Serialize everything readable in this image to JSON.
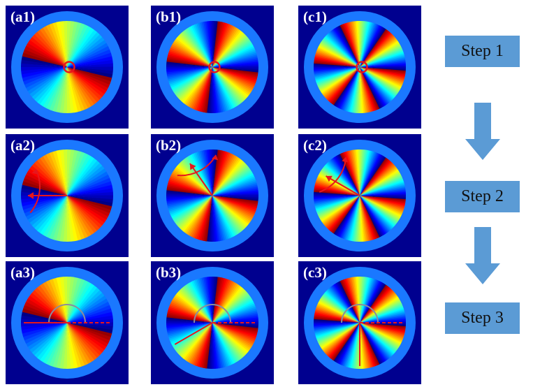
{
  "colors": {
    "panel_bg": "#00008f",
    "ring": "#1a78ff",
    "step_box": "#5b9bd5",
    "marker_red": "#e8161c",
    "guide_gray": "#8c8c9c"
  },
  "panels": [
    {
      "id": "a1",
      "label": "(a1)",
      "order": 2,
      "marker": "circle"
    },
    {
      "id": "b1",
      "label": "(b1)",
      "order": 4,
      "marker": "circle"
    },
    {
      "id": "c1",
      "label": "(c1)",
      "order": 6,
      "marker": "circle"
    },
    {
      "id": "a2",
      "label": "(a2)",
      "order": 2,
      "marker": "rotate",
      "arrow_angle_deg": 180
    },
    {
      "id": "b2",
      "label": "(b2)",
      "order": 4,
      "marker": "rotate",
      "arrow_angle_deg": 125
    },
    {
      "id": "c2",
      "label": "(c2)",
      "order": 6,
      "marker": "rotate",
      "arrow_angle_deg": 150
    },
    {
      "id": "a3",
      "label": "(a3)",
      "order": 2,
      "marker": "angle",
      "lines_deg": [
        180
      ],
      "dashed_deg": 0
    },
    {
      "id": "b3",
      "label": "(b3)",
      "order": 4,
      "marker": "angle",
      "lines_deg": [
        210
      ],
      "dashed_deg": 0
    },
    {
      "id": "c3",
      "label": "(c3)",
      "order": 6,
      "marker": "angle",
      "lines_deg": [
        270
      ],
      "dashed_deg": 0
    }
  ],
  "steps": [
    {
      "label": "Step 1"
    },
    {
      "label": "Step 2"
    },
    {
      "label": "Step 3"
    }
  ]
}
